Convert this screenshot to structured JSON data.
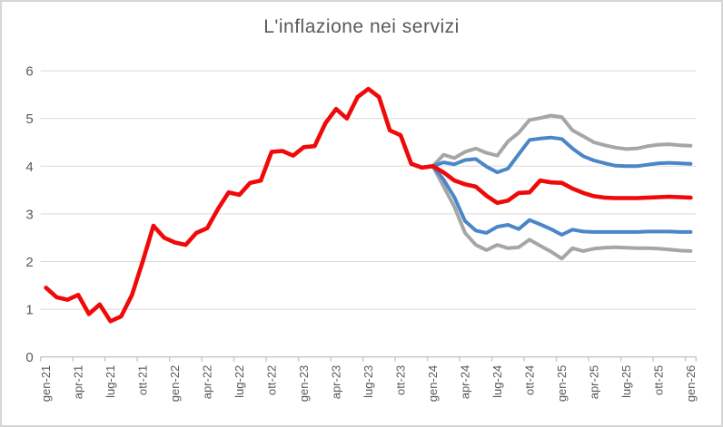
{
  "frame": {
    "background": "#ffffff",
    "border_color": "#d6d6d6"
  },
  "chart_data": {
    "type": "line",
    "title": "L'inflazione nei servizi",
    "title_color": "#595959",
    "xlabel": "",
    "ylabel": "",
    "ylim": [
      0,
      6
    ],
    "y_ticks": [
      0,
      1,
      2,
      3,
      4,
      5,
      6
    ],
    "grid": true,
    "legend": null,
    "gridline_color": "#d9d9d9",
    "axis_color": "#c6c6c6",
    "label_color": "#595959",
    "n_points": 61,
    "x_first": "gen-21",
    "x_last": "gen-26",
    "months_per_tick": 3,
    "x_tick_labels": [
      "gen-21",
      "apr-21",
      "lug-21",
      "ott-21",
      "gen-22",
      "apr-22",
      "lug-22",
      "ott-22",
      "gen-23",
      "apr-23",
      "lug-23",
      "ott-23",
      "gen-24",
      "apr-24",
      "lug-24",
      "ott-24",
      "gen-25",
      "apr-25",
      "lug-25",
      "ott-25",
      "gen-26"
    ],
    "series": [
      {
        "name": "banda-superiore-grigia",
        "color": "#a6a6a6",
        "width": 4,
        "start_index": 36,
        "values": [
          4.0,
          4.24,
          4.17,
          4.3,
          4.37,
          4.28,
          4.22,
          4.52,
          4.7,
          4.97,
          5.01,
          5.06,
          5.03,
          4.75,
          4.63,
          4.5,
          4.44,
          4.39,
          4.36,
          4.37,
          4.42,
          4.45,
          4.46,
          4.44,
          4.43
        ]
      },
      {
        "name": "banda-inferiore-grigia",
        "color": "#a6a6a6",
        "width": 4,
        "start_index": 36,
        "values": [
          4.0,
          3.58,
          3.15,
          2.6,
          2.35,
          2.24,
          2.35,
          2.28,
          2.3,
          2.46,
          2.33,
          2.21,
          2.06,
          2.28,
          2.22,
          2.27,
          2.29,
          2.3,
          2.29,
          2.28,
          2.28,
          2.27,
          2.25,
          2.23,
          2.22
        ]
      },
      {
        "name": "banda-superiore-blu",
        "color": "#4a86c8",
        "width": 4,
        "start_index": 36,
        "values": [
          4.0,
          4.08,
          4.04,
          4.13,
          4.15,
          3.99,
          3.87,
          3.95,
          4.25,
          4.55,
          4.58,
          4.6,
          4.57,
          4.37,
          4.21,
          4.12,
          4.06,
          4.01,
          4.0,
          4.0,
          4.03,
          4.06,
          4.07,
          4.06,
          4.05
        ]
      },
      {
        "name": "banda-inferiore-blu",
        "color": "#4a86c8",
        "width": 4,
        "start_index": 36,
        "values": [
          4.0,
          3.72,
          3.35,
          2.85,
          2.65,
          2.6,
          2.73,
          2.77,
          2.68,
          2.87,
          2.78,
          2.68,
          2.56,
          2.67,
          2.63,
          2.62,
          2.62,
          2.62,
          2.62,
          2.62,
          2.63,
          2.63,
          2.63,
          2.62,
          2.62
        ]
      },
      {
        "name": "inflazione-servizi-storico-e-previsione-centrale",
        "color": "#f00909",
        "width": 4.6,
        "start_index": 0,
        "values": [
          1.45,
          1.25,
          1.2,
          1.3,
          0.9,
          1.1,
          0.75,
          0.85,
          1.3,
          2.0,
          2.75,
          2.5,
          2.4,
          2.35,
          2.6,
          2.7,
          3.1,
          3.45,
          3.4,
          3.65,
          3.7,
          4.3,
          4.32,
          4.22,
          4.4,
          4.42,
          4.9,
          5.2,
          5.0,
          5.45,
          5.62,
          5.45,
          4.75,
          4.65,
          4.05,
          3.97,
          4.0,
          3.87,
          3.7,
          3.62,
          3.57,
          3.38,
          3.23,
          3.28,
          3.44,
          3.45,
          3.7,
          3.66,
          3.65,
          3.53,
          3.44,
          3.37,
          3.34,
          3.33,
          3.33,
          3.33,
          3.34,
          3.35,
          3.36,
          3.35,
          3.34
        ]
      }
    ]
  }
}
